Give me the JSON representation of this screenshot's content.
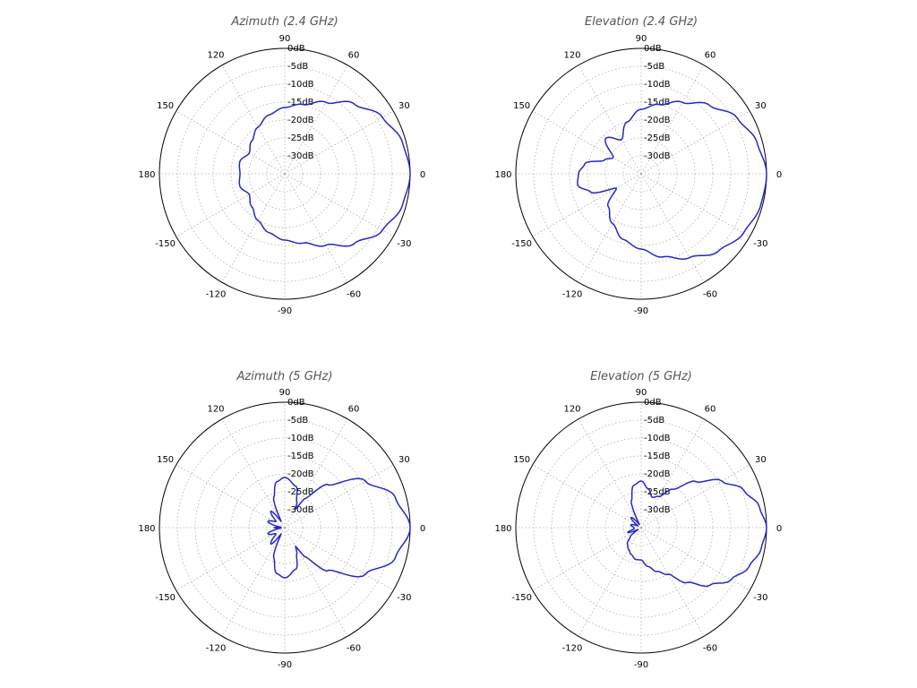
{
  "chart_data": [
    {
      "type": "line",
      "subtype": "polar",
      "title": "Azimuth (2.4 GHz)",
      "angle_ticks": [
        "0",
        "30",
        "60",
        "90",
        "120",
        "150",
        "180",
        "-150",
        "-120",
        "-90",
        "-60",
        "-30"
      ],
      "angle_values": [
        0,
        30,
        60,
        90,
        120,
        150,
        180,
        -150,
        -120,
        -90,
        -60,
        -30
      ],
      "radial_ticks": [
        "0dB",
        "-5dB",
        "-10dB",
        "-15dB",
        "-20dB",
        "-25dB",
        "-30dB"
      ],
      "radial_values": [
        0,
        -5,
        -10,
        -15,
        -20,
        -25,
        -30
      ],
      "rlim": [
        -35,
        0
      ],
      "grid": true,
      "color": "#2727c8",
      "series": [
        {
          "theta_deg": [
            0,
            15,
            30,
            45,
            60,
            75,
            90,
            105,
            120,
            135,
            150,
            165,
            180,
            -165,
            -150,
            -135,
            -120,
            -105,
            -90,
            -75,
            -60,
            -45,
            -30,
            -15
          ],
          "gain_db": [
            0,
            -1,
            -3.5,
            -7.5,
            -12,
            -15,
            -16.5,
            -18,
            -20,
            -22,
            -23.5,
            -22,
            -22.5,
            -22,
            -23.5,
            -22,
            -20,
            -18,
            -16.5,
            -15,
            -12,
            -7.5,
            -3.5,
            -1
          ]
        }
      ]
    },
    {
      "type": "line",
      "subtype": "polar",
      "title": "Elevation (2.4 GHz)",
      "angle_ticks": [
        "0",
        "30",
        "60",
        "90",
        "120",
        "150",
        "180",
        "-150",
        "-120",
        "-90",
        "-60",
        "-30"
      ],
      "angle_values": [
        0,
        30,
        60,
        90,
        120,
        150,
        180,
        -150,
        -120,
        -90,
        -60,
        -30
      ],
      "radial_ticks": [
        "0dB",
        "-5dB",
        "-10dB",
        "-15dB",
        "-20dB",
        "-25dB",
        "-30dB"
      ],
      "radial_values": [
        0,
        -5,
        -10,
        -15,
        -20,
        -25,
        -30
      ],
      "rlim": [
        -35,
        0
      ],
      "grid": true,
      "color": "#2727c8",
      "series": [
        {
          "theta_deg": [
            0,
            15,
            30,
            45,
            60,
            75,
            90,
            105,
            120,
            135,
            150,
            160,
            170,
            180,
            -170,
            -160,
            -150,
            -135,
            -120,
            -105,
            -90,
            -75,
            -60,
            -45,
            -30,
            -15
          ],
          "gain_db": [
            0,
            -1.5,
            -4,
            -8,
            -12,
            -15,
            -17,
            -20,
            -24,
            -21,
            -26,
            -24,
            -19,
            -17.5,
            -17,
            -20,
            -27,
            -22,
            -19,
            -16,
            -14,
            -11,
            -8,
            -4.5,
            -2,
            -0.5
          ]
        }
      ]
    },
    {
      "type": "line",
      "subtype": "polar",
      "title": "Azimuth (5 GHz)",
      "angle_ticks": [
        "0",
        "30",
        "60",
        "90",
        "120",
        "150",
        "180",
        "-150",
        "-120",
        "-90",
        "-60",
        "-30"
      ],
      "angle_values": [
        0,
        30,
        60,
        90,
        120,
        150,
        180,
        -150,
        -120,
        -90,
        -60,
        -30
      ],
      "radial_ticks": [
        "0dB",
        "-5dB",
        "-10dB",
        "-15dB",
        "-20dB",
        "-25dB",
        "-30dB"
      ],
      "radial_values": [
        0,
        -5,
        -10,
        -15,
        -20,
        -25,
        -30
      ],
      "rlim": [
        -35,
        0
      ],
      "grid": true,
      "color": "#2727c8",
      "series": [
        {
          "theta_deg": [
            0,
            15,
            30,
            45,
            55,
            60,
            65,
            75,
            90,
            100,
            110,
            120,
            130,
            145,
            160,
            175,
            180,
            -175,
            -160,
            -145,
            -130,
            -120,
            -110,
            -100,
            -90,
            -75,
            -65,
            -60,
            -55,
            -45,
            -30,
            -15
          ],
          "gain_db": [
            0,
            -3,
            -9,
            -18,
            -25,
            -29,
            -27,
            -23,
            -21,
            -22,
            -26,
            -33,
            -29,
            -32,
            -30,
            -34,
            -32,
            -34,
            -30,
            -32,
            -29,
            -33,
            -26,
            -22,
            -21,
            -23,
            -27,
            -29,
            -25,
            -18,
            -9,
            -3
          ]
        }
      ]
    },
    {
      "type": "line",
      "subtype": "polar",
      "title": "Elevation (5 GHz)",
      "angle_ticks": [
        "0",
        "30",
        "60",
        "90",
        "120",
        "150",
        "180",
        "-150",
        "-120",
        "-90",
        "-60",
        "-30"
      ],
      "angle_values": [
        0,
        30,
        60,
        90,
        120,
        150,
        180,
        -150,
        -120,
        -90,
        -60,
        -30
      ],
      "radial_ticks": [
        "0dB",
        "-5dB",
        "-10dB",
        "-15dB",
        "-20dB",
        "-25dB",
        "-30dB"
      ],
      "radial_values": [
        0,
        -5,
        -10,
        -15,
        -20,
        -25,
        -30
      ],
      "rlim": [
        -35,
        0
      ],
      "grid": true,
      "color": "#2727c8",
      "series": [
        {
          "theta_deg": [
            0,
            10,
            20,
            30,
            40,
            50,
            60,
            70,
            80,
            90,
            100,
            110,
            120,
            135,
            150,
            165,
            180,
            -170,
            -160,
            -150,
            -140,
            -130,
            -120,
            -110,
            -100,
            -90,
            -80,
            -70,
            -60,
            -50,
            -40,
            -30,
            -20,
            -10
          ],
          "gain_db": [
            0,
            -1.5,
            -4.5,
            -9,
            -15,
            -21,
            -25,
            -26,
            -24,
            -22,
            -23,
            -27,
            -34,
            -31,
            -34,
            -32,
            -33,
            -33,
            -31,
            -34,
            -31,
            -29,
            -28,
            -27,
            -26,
            -26,
            -24,
            -22,
            -20,
            -15,
            -10,
            -6,
            -3,
            -1
          ]
        }
      ]
    }
  ]
}
